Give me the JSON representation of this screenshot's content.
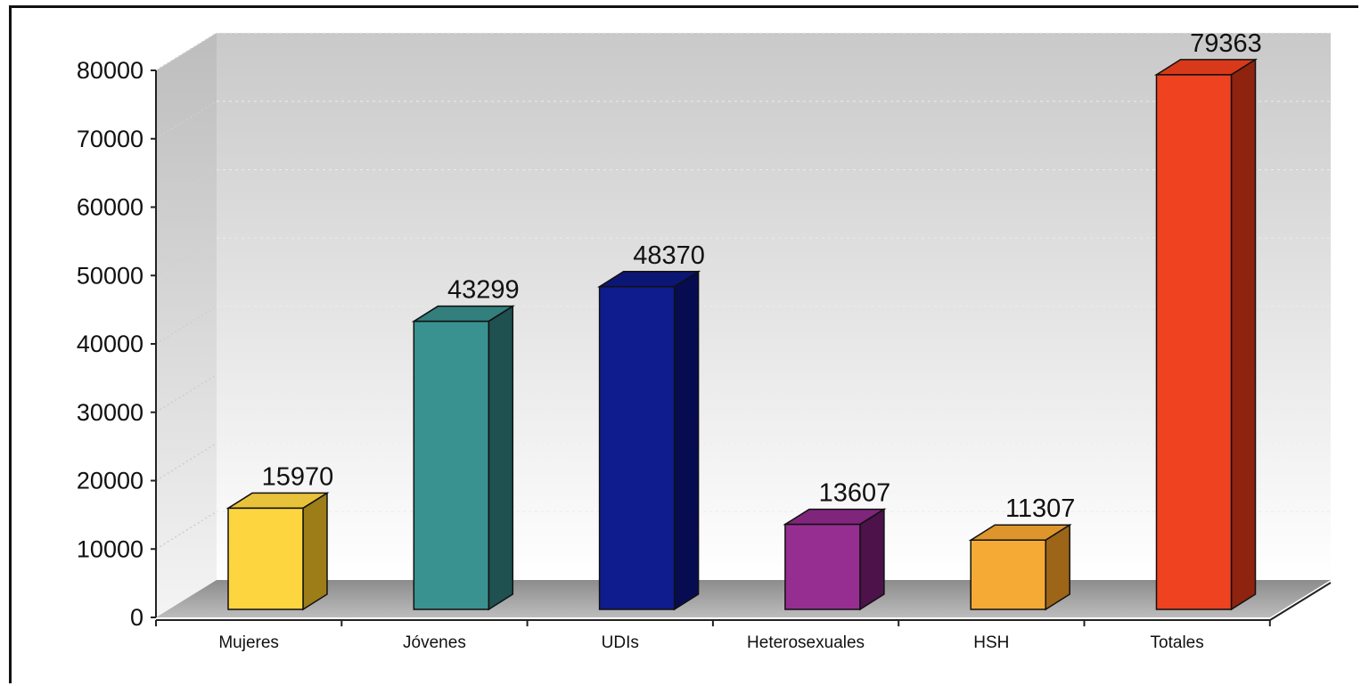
{
  "chart_data": {
    "type": "bar",
    "categories": [
      "Mujeres",
      "Jóvenes",
      "UDIs",
      "Heterosexuales",
      "HSH",
      "Totales"
    ],
    "values": [
      15970,
      43299,
      48370,
      13607,
      11307,
      79363
    ],
    "data_labels": [
      "15970",
      "43299",
      "48370",
      "13607",
      "11307",
      "79363"
    ],
    "ylim": [
      0,
      80000
    ],
    "yticks": [
      "0",
      "10000",
      "20000",
      "30000",
      "40000",
      "50000",
      "60000",
      "70000",
      "80000"
    ],
    "grid": true,
    "three_d": true,
    "title": "",
    "xlabel": "",
    "ylabel": "",
    "colors": {
      "front": [
        "#fcd53f",
        "#3a9290",
        "#0f1c8e",
        "#952e90",
        "#f4aa35",
        "#ee4220"
      ],
      "top": [
        "#e8c23a",
        "#327f7d",
        "#0c1675",
        "#80257c",
        "#dd952c",
        "#d9391b"
      ],
      "side": [
        "#9c7d18",
        "#1e5150",
        "#060c4f",
        "#4d1249",
        "#9c6518",
        "#8e2310"
      ]
    }
  }
}
